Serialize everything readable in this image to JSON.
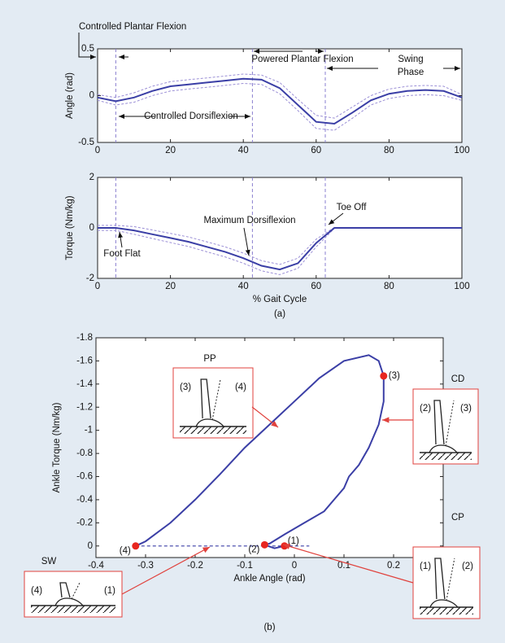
{
  "chart_data": [
    {
      "type": "line",
      "ylabel": "Angle (rad)",
      "x": [
        0,
        5,
        10,
        15,
        20,
        25,
        30,
        35,
        40,
        45,
        50,
        55,
        60,
        65,
        70,
        75,
        80,
        85,
        90,
        95,
        100
      ],
      "series": [
        {
          "color": "#3b3fa6",
          "width": 2,
          "values": [
            -0.02,
            -0.06,
            -0.02,
            0.05,
            0.1,
            0.12,
            0.14,
            0.16,
            0.18,
            0.17,
            0.08,
            -0.1,
            -0.28,
            -0.3,
            -0.18,
            -0.05,
            0.02,
            0.05,
            0.06,
            0.05,
            -0.02
          ]
        },
        {
          "color": "#9b8fd6",
          "dash": true,
          "width": 1,
          "values": [
            0.01,
            -0.02,
            0.03,
            0.1,
            0.15,
            0.17,
            0.19,
            0.21,
            0.23,
            0.22,
            0.14,
            -0.04,
            -0.21,
            -0.24,
            -0.12,
            0.0,
            0.07,
            0.1,
            0.11,
            0.1,
            0.01
          ]
        },
        {
          "color": "#9b8fd6",
          "dash": true,
          "width": 1,
          "values": [
            -0.05,
            -0.1,
            -0.07,
            0.0,
            0.05,
            0.07,
            0.09,
            0.11,
            0.13,
            0.12,
            0.02,
            -0.16,
            -0.35,
            -0.37,
            -0.24,
            -0.1,
            -0.03,
            0.0,
            0.01,
            0.0,
            -0.05
          ]
        }
      ],
      "xlim": [
        0,
        100
      ],
      "ylim": [
        -0.5,
        0.5
      ],
      "xticks": [
        0,
        20,
        40,
        60,
        80,
        100
      ],
      "yticks": [
        -0.5,
        0,
        0.5
      ],
      "vlines": [
        5,
        42.5,
        62.5
      ],
      "vline_color": "#8a7fd0",
      "annotations": [
        "Controlled Plantar Flexion",
        "Powered Plantar Flexion",
        "Swing",
        "Phase",
        "Controlled Dorsiflexion"
      ]
    },
    {
      "type": "line",
      "ylabel": "Torque (Nm/kg)",
      "xlabel": "% Gait Cycle",
      "caption": "(a)",
      "x": [
        0,
        5,
        10,
        15,
        20,
        25,
        30,
        35,
        40,
        45,
        50,
        55,
        60,
        65,
        70,
        75,
        80,
        85,
        90,
        95,
        100
      ],
      "series": [
        {
          "color": "#3b3fa6",
          "width": 2,
          "values": [
            0,
            0,
            -0.1,
            -0.25,
            -0.4,
            -0.55,
            -0.75,
            -0.95,
            -1.2,
            -1.5,
            -1.65,
            -1.4,
            -0.6,
            0,
            0,
            0,
            0,
            0,
            0,
            0,
            0
          ]
        },
        {
          "color": "#9b8fd6",
          "dash": true,
          "width": 1,
          "values": [
            0.1,
            0.1,
            0.05,
            -0.08,
            -0.22,
            -0.36,
            -0.55,
            -0.75,
            -1.0,
            -1.3,
            -1.45,
            -1.2,
            -0.45,
            0.02,
            0,
            0,
            0,
            0,
            0,
            0,
            0
          ]
        },
        {
          "color": "#9b8fd6",
          "dash": true,
          "width": 1,
          "values": [
            -0.1,
            -0.1,
            -0.25,
            -0.42,
            -0.58,
            -0.74,
            -0.95,
            -1.15,
            -1.4,
            -1.7,
            -1.85,
            -1.6,
            -0.75,
            -0.02,
            0,
            0,
            0,
            0,
            0,
            0,
            0
          ]
        }
      ],
      "xlim": [
        0,
        100
      ],
      "ylim": [
        -2,
        2
      ],
      "xticks": [
        0,
        20,
        40,
        60,
        80,
        100
      ],
      "yticks": [
        -2,
        0,
        2
      ],
      "vlines": [
        5,
        42.5,
        62.5
      ],
      "vline_color": "#8a7fd0",
      "annotations": [
        "Maximum Dorsiflexion",
        "Foot Flat",
        "Toe Off"
      ]
    },
    {
      "type": "loop",
      "ylabel": "Ankle Torque (Nm/kg)",
      "xlabel": "Ankle Angle (rad)",
      "caption": "(b)",
      "color": "#3b3fa6",
      "point_color": "#e8261f",
      "x": [
        -0.02,
        -0.04,
        -0.06,
        -0.05,
        -0.02,
        0.02,
        0.06,
        0.08,
        0.1,
        0.11,
        0.13,
        0.15,
        0.17,
        0.18,
        0.18,
        0.17,
        0.15,
        0.1,
        0.05,
        0,
        -0.05,
        -0.1,
        -0.15,
        -0.2,
        -0.25,
        -0.3,
        -0.32
      ],
      "values": [
        0,
        0.02,
        -0.01,
        -0.02,
        -0.1,
        -0.2,
        -0.3,
        -0.4,
        -0.5,
        -0.6,
        -0.7,
        -0.85,
        -1.05,
        -1.25,
        -1.47,
        -1.6,
        -1.65,
        -1.6,
        -1.45,
        -1.25,
        -1.05,
        -0.85,
        -0.62,
        -0.4,
        -0.2,
        -0.04,
        0
      ],
      "swing": {
        "x": [
          -0.32,
          0.03
        ],
        "values": [
          0,
          0
        ]
      },
      "points": {
        "x": [
          -0.02,
          -0.06,
          0.18,
          -0.32
        ],
        "values": [
          0,
          -0.01,
          -1.47,
          0
        ],
        "labels": [
          "(1)",
          "(2)",
          "(3)",
          "(4)"
        ]
      },
      "xlim": [
        -0.4,
        0.3
      ],
      "ylim": [
        0.1,
        -1.8
      ],
      "xticks": [
        -0.4,
        -0.3,
        -0.2,
        -0.1,
        0,
        0.1,
        0.2
      ],
      "yticks": [
        -1.8,
        -1.6,
        -1.4,
        -1.2,
        -1,
        -0.8,
        -0.6,
        -0.4,
        -0.2,
        0
      ],
      "insets": [
        {
          "label": "PP",
          "parts": [
            "(3)",
            "(4)"
          ]
        },
        {
          "label": "CD",
          "parts": [
            "(2)",
            "(3)"
          ]
        },
        {
          "label": "CP",
          "parts": [
            "(1)",
            "(2)"
          ]
        },
        {
          "label": "SW",
          "parts": [
            "(4)",
            "(1)"
          ]
        }
      ]
    }
  ]
}
